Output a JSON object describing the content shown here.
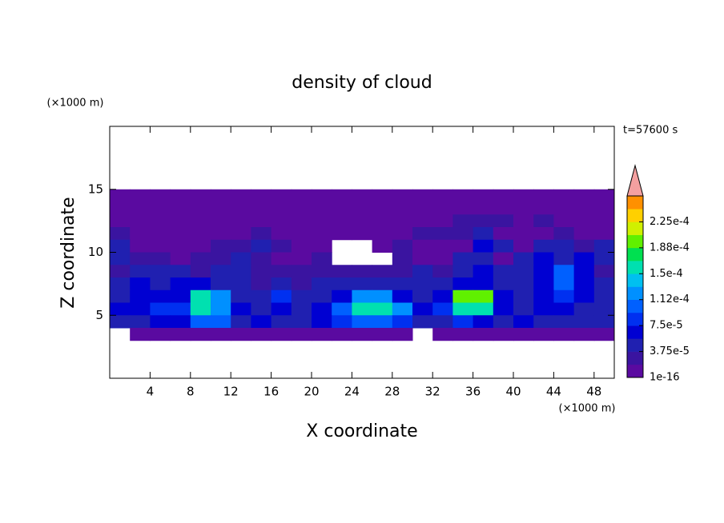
{
  "chart_data": {
    "type": "contour",
    "title": "density of cloud",
    "xlabel": "X coordinate",
    "ylabel": "Z coordinate",
    "xunit": "(×1000 m)",
    "yunit": "(×1000 m)",
    "annotation": "t=57600 s",
    "xlim": [
      0,
      50
    ],
    "ylim": [
      0,
      20
    ],
    "xticks": [
      4,
      8,
      12,
      16,
      20,
      24,
      28,
      32,
      36,
      40,
      44,
      48
    ],
    "yticks": [
      5,
      10,
      15
    ],
    "x": [
      1,
      3,
      5,
      7,
      9,
      11,
      13,
      15,
      17,
      19,
      21,
      23,
      25,
      27,
      29,
      31,
      33,
      35,
      37,
      39,
      41,
      43,
      45,
      47,
      49
    ],
    "y": [
      14.5,
      13.5,
      12.5,
      11.5,
      10.5,
      9.5,
      8.5,
      7.5,
      6.5,
      5.5,
      4.5,
      3.5
    ],
    "values": [
      [
        1e-06,
        1e-06,
        1e-06,
        1e-06,
        1e-06,
        1e-06,
        1e-06,
        1e-06,
        1e-06,
        1e-06,
        1e-06,
        1e-06,
        1e-06,
        1e-06,
        1e-06,
        1e-06,
        1e-06,
        1e-06,
        1e-06,
        1e-06,
        1e-06,
        1e-06,
        1e-06,
        1e-06,
        1e-06
      ],
      [
        1e-06,
        1e-06,
        1e-06,
        1e-06,
        1e-06,
        1e-06,
        1e-06,
        1e-06,
        1e-06,
        1e-06,
        1e-06,
        1e-06,
        1e-06,
        1e-06,
        1e-06,
        1e-06,
        1e-06,
        1e-06,
        1e-06,
        1e-06,
        1e-06,
        1e-06,
        1e-06,
        1e-06,
        1e-06
      ],
      [
        1e-06,
        1e-06,
        1e-06,
        1e-06,
        1e-06,
        1e-06,
        1e-06,
        1e-06,
        1e-06,
        1e-06,
        1e-06,
        1e-06,
        1e-06,
        1e-06,
        1e-06,
        1e-06,
        1e-06,
        2e-05,
        2e-05,
        2e-05,
        1e-06,
        2e-05,
        1e-06,
        1e-06,
        1e-06
      ],
      [
        2e-05,
        1e-06,
        1e-06,
        1e-06,
        1e-06,
        1e-06,
        1e-06,
        2e-05,
        1e-06,
        1e-06,
        1e-06,
        1e-06,
        1e-06,
        1e-06,
        1e-06,
        2e-05,
        2e-05,
        2e-05,
        4e-05,
        1e-06,
        1e-06,
        1e-06,
        2e-05,
        1e-06,
        1e-06
      ],
      [
        4e-05,
        1e-06,
        1e-06,
        1e-06,
        1e-06,
        2e-05,
        2e-05,
        4e-05,
        2e-05,
        1e-06,
        1e-06,
        null,
        null,
        1e-06,
        2e-05,
        1e-06,
        1e-06,
        1e-06,
        6e-05,
        4e-05,
        1e-06,
        4e-05,
        4e-05,
        2e-05,
        4e-05
      ],
      [
        4e-05,
        2e-05,
        2e-05,
        1e-06,
        2e-05,
        2e-05,
        4e-05,
        2e-05,
        1e-06,
        1e-06,
        2e-05,
        null,
        null,
        null,
        2e-05,
        1e-06,
        1e-06,
        4e-05,
        4e-05,
        1e-06,
        4e-05,
        6e-05,
        4e-05,
        6e-05,
        4e-05
      ],
      [
        2e-05,
        4e-05,
        4e-05,
        4e-05,
        2e-05,
        4e-05,
        4e-05,
        2e-05,
        2e-05,
        2e-05,
        2e-05,
        2e-05,
        2e-05,
        2e-05,
        2e-05,
        4e-05,
        2e-05,
        4e-05,
        6e-05,
        4e-05,
        4e-05,
        6e-05,
        0.0001,
        6e-05,
        2e-05
      ],
      [
        4e-05,
        6e-05,
        4e-05,
        6e-05,
        6e-05,
        4e-05,
        4e-05,
        2e-05,
        4e-05,
        2e-05,
        4e-05,
        4e-05,
        4e-05,
        4e-05,
        4e-05,
        4e-05,
        4e-05,
        6e-05,
        6e-05,
        4e-05,
        4e-05,
        6e-05,
        0.0001,
        6e-05,
        4e-05
      ],
      [
        4e-05,
        6e-05,
        6e-05,
        6e-05,
        0.00016,
        0.00013,
        4e-05,
        4e-05,
        8e-05,
        4e-05,
        4e-05,
        6e-05,
        0.00013,
        0.00013,
        6e-05,
        4e-05,
        6e-05,
        0.0002,
        0.0002,
        6e-05,
        4e-05,
        6e-05,
        8e-05,
        6e-05,
        4e-05
      ],
      [
        6e-05,
        6e-05,
        8e-05,
        8e-05,
        0.00016,
        0.00013,
        6e-05,
        4e-05,
        6e-05,
        4e-05,
        6e-05,
        0.0001,
        0.00016,
        0.00016,
        0.00013,
        6e-05,
        8e-05,
        0.00016,
        0.00016,
        6e-05,
        4e-05,
        6e-05,
        6e-05,
        4e-05,
        4e-05
      ],
      [
        4e-05,
        4e-05,
        6e-05,
        6e-05,
        0.0001,
        0.0001,
        4e-05,
        6e-05,
        4e-05,
        4e-05,
        6e-05,
        8e-05,
        0.0001,
        0.0001,
        8e-05,
        4e-05,
        4e-05,
        8e-05,
        6e-05,
        4e-05,
        6e-05,
        4e-05,
        4e-05,
        4e-05,
        4e-05
      ],
      [
        null,
        1e-06,
        1e-06,
        1e-06,
        1e-06,
        1e-06,
        1e-06,
        1e-06,
        1e-06,
        1e-06,
        1e-06,
        1e-06,
        1e-06,
        1e-06,
        1e-06,
        null,
        1e-06,
        1e-06,
        1e-06,
        1e-06,
        1e-06,
        1e-06,
        1e-06,
        1e-06,
        1e-06
      ]
    ],
    "clim": [
      1e-16,
      0.0002625
    ],
    "colors": [
      "#5a0aa0",
      "#3a14a0",
      "#2020b0",
      "#0000d2",
      "#0030f0",
      "#0060ff",
      "#0090ff",
      "#00c0f0",
      "#00e0b0",
      "#00e050",
      "#60f000",
      "#d0f000",
      "#ffd000",
      "#ff9000"
    ],
    "over_color": "#f4a0a0",
    "cticks": [
      1e-16,
      {
        "value": 3.75e-05,
        "label": "3.75e-5"
      },
      {
        "value": 7.5e-05,
        "label": "7.5e-5"
      },
      {
        "value": 0.0001125,
        "label": "1.12e-4"
      },
      {
        "value": 0.00015,
        "label": "1.5e-4"
      },
      {
        "value": 0.0001875,
        "label": "1.88e-4"
      },
      {
        "value": 0.000225,
        "label": "2.25e-4"
      }
    ]
  }
}
